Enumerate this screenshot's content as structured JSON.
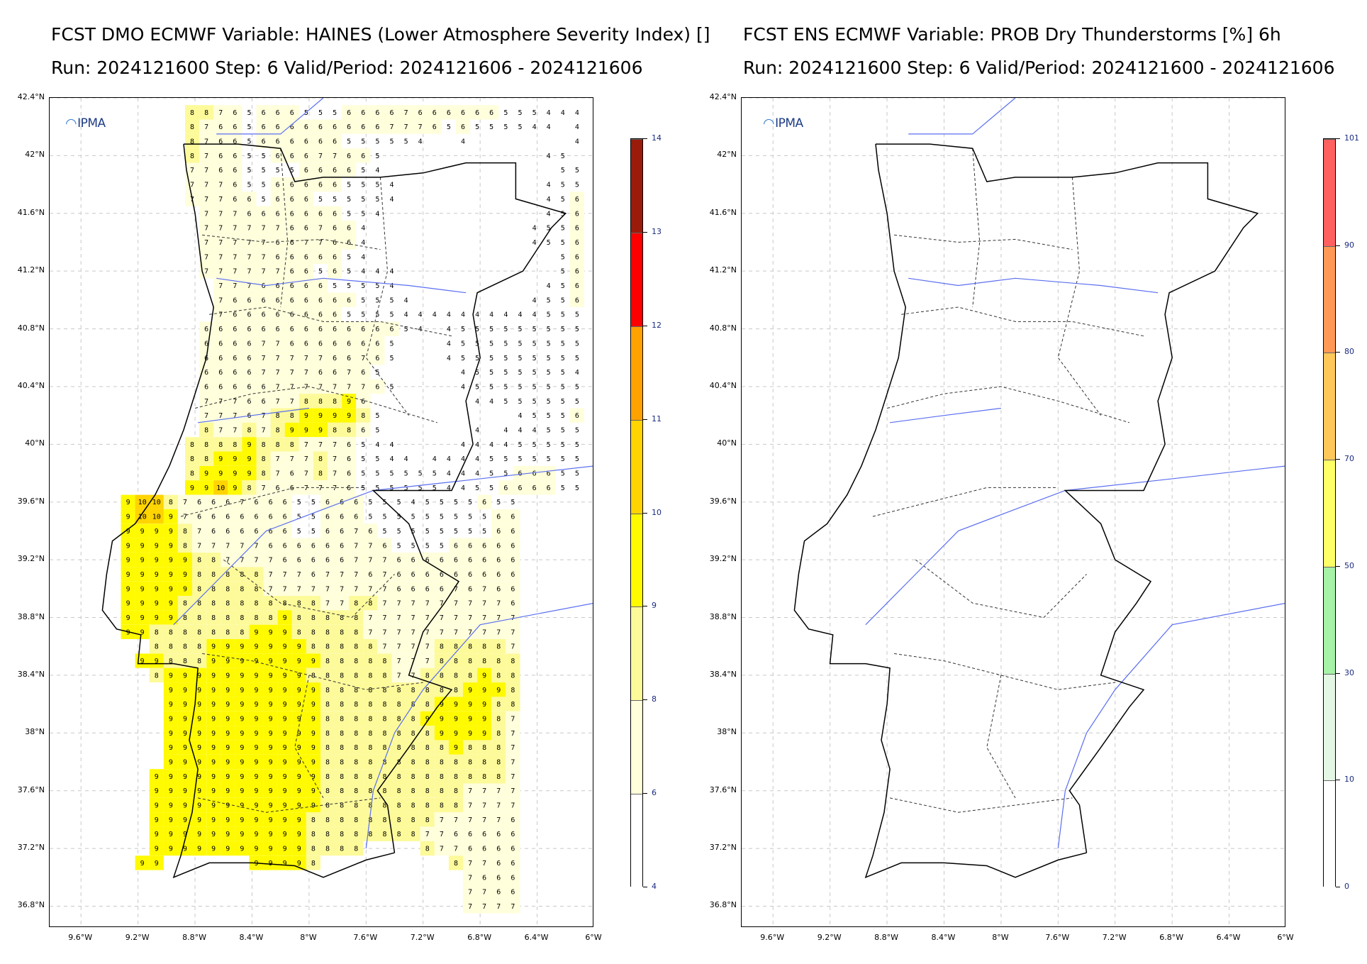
{
  "left_panel": {
    "title_line1": "FCST DMO ECMWF Variable: HAINES (Lower Atmosphere Severity Index) []",
    "title_line2": "Run: 2024121600 Step: 6 Valid/Period: 2024121606 - 2024121606",
    "logo_text": "IPMA",
    "colorbar": {
      "tick_labels": [
        "4",
        "6",
        "8",
        "9",
        "10",
        "11",
        "12",
        "13",
        "14"
      ],
      "colors": [
        "#ffffff",
        "#ffffdc",
        "#fdfa9a",
        "#fffa00",
        "#ffd400",
        "#ffa200",
        "#ff0000",
        "#9b1b0a"
      ]
    }
  },
  "right_panel": {
    "title_line1": "FCST ENS ECMWF Variable: PROB Dry Thunderstorms [%] 6h",
    "title_line2": "Run: 2024121600 Step: 6 Valid/Period: 2024121600 - 2024121606",
    "logo_text": "IPMA",
    "colorbar": {
      "tick_labels": [
        "0",
        "10",
        "30",
        "50",
        "70",
        "80",
        "90",
        "101"
      ],
      "colors": [
        "#ffffff",
        "#e4f6e4",
        "#a6f2a6",
        "#ffff66",
        "#ffc85a",
        "#ff9955",
        "#ff6060"
      ]
    }
  },
  "axes": {
    "lat_labels": [
      "42.4°N",
      "42°N",
      "41.6°N",
      "41.2°N",
      "40.8°N",
      "40.4°N",
      "40°N",
      "39.6°N",
      "39.2°N",
      "38.8°N",
      "38.4°N",
      "38°N",
      "37.6°N",
      "37.2°N",
      "36.8°N"
    ],
    "lon_labels": [
      "9.6°W",
      "9.2°W",
      "8.8°W",
      "8.4°W",
      "8°W",
      "7.6°W",
      "7.2°W",
      "6.8°W",
      "6.4°W",
      "6°W"
    ],
    "lat_range": [
      36.65,
      42.4
    ],
    "lon_range": [
      -9.82,
      -6.0
    ]
  },
  "map_features": {
    "grid_step_lon": 0.1,
    "grid_step_lat": 0.1,
    "land_outline_color": "#000000",
    "river_color": "#5a6ef0"
  },
  "haines_grid_rows": [
    {
      "lat": 42.3,
      "values": "8 8 7 6 5 6 6 6 5 5 5 6 6 6 6 7 6 6 6 6 6 6 5 5 5 4 4 4"
    },
    {
      "lat": 42.2,
      "values": "8 7 6 6 5 6 6 6 6 6 6 6 6 6 7 7 7 6 5 6 5 5 5 5 4 4 . 4"
    },
    {
      "lat": 42.1,
      "values": "8 7 6 6 5 6 6 6 6 6 6 5 5 5 5 5 4 . . 4 . . . . . . . 4"
    },
    {
      "lat": 42.0,
      "values": "8 7 6 6 5 5 6 6 6 7 7 6 6 5 . . . . . . . . . . . 4 5 ."
    },
    {
      "lat": 41.9,
      "values": "7 7 6 6 5 5 5 5 6 6 6 6 5 4 . . . . . . . . . . . . 5 5"
    },
    {
      "lat": 41.8,
      "values": "7 7 7 6 5 5 6 6 6 6 6 5 5 5 4 . . . . . . . . . . 4 5 5"
    },
    {
      "lat": 41.7,
      "values": "7 7 7 6 6 5 6 6 6 5 5 5 5 5 4 . . . . . . . . . . 4 5 6"
    },
    {
      "lat": 41.6,
      "values": ". 7 7 7 6 6 6 6 6 6 6 5 5 4 . . . . . . . . . . . 4 5 6"
    },
    {
      "lat": 41.5,
      "values": ". 7 7 7 7 7 7 6 6 7 6 6 4 . . . . . . . . . . . 4 5 5 6"
    },
    {
      "lat": 41.4,
      "values": ". 7 7 7 7 7 6 6 7 7 6 6 4 . . . . . . . . . . . 4 5 5 6"
    },
    {
      "lat": 41.3,
      "values": ". 7 7 7 7 7 6 6 6 6 6 5 4 . . . . . . . . . . . . . 5 6"
    },
    {
      "lat": 41.2,
      "values": ". 7 7 7 7 7 7 6 6 5 6 5 4 4 4 . . . . . . . . . . . 5 6"
    },
    {
      "lat": 41.1,
      "values": ". . 7 7 7 6 6 6 6 6 5 5 5 5 4 . . . . . . . . . . 4 5 6"
    },
    {
      "lat": 41.0,
      "values": ". . 7 6 6 6 6 6 6 6 6 6 5 5 5 4 . . . . . . . . 4 5 5 6"
    },
    {
      "lat": 40.9,
      "values": ". . 7 6 6 6 6 6 6 6 6 5 5 5 5 4 4 4 4 4 4 4 4 4 4 5 5 5"
    },
    {
      "lat": 40.8,
      "values": ". 6 6 6 6 6 6 6 6 6 6 6 6 6 6 5 4 . 4 5 5 5 5 5 5 5 5 5"
    },
    {
      "lat": 40.7,
      "values": ". 6 6 6 6 7 7 6 6 6 6 6 6 6 5 . . . 4 5 5 5 5 5 5 5 5 5"
    },
    {
      "lat": 40.6,
      "values": ". 6 6 6 6 7 7 7 7 7 6 6 7 6 5 . . . 4 5 5 5 5 5 5 5 5 5"
    },
    {
      "lat": 40.5,
      "values": ". 6 6 6 6 7 7 7 7 6 6 7 6 5 . . . . . 4 5 5 5 5 5 5 5 4"
    },
    {
      "lat": 40.4,
      "values": ". 6 6 6 6 6 7 7 7 7 7 7 7 6 5 . . . . 4 5 5 5 5 5 5 5 5"
    },
    {
      "lat": 40.3,
      "values": ". 7 7 7 6 6 7 7 8 8 8 9 6 . . . . . . . 4 4 5 5 5 5 5 5"
    },
    {
      "lat": 40.2,
      "values": ". 7 7 7 6 7 8 8 9 9 9 9 8 5 . . . . . . . . . 4 5 5 5 6"
    },
    {
      "lat": 40.1,
      "values": ". 8 7 7 8 7 8 9 9 9 8 8 6 5 . . . . . . 4 . 4 4 4 5 5 5"
    },
    {
      "lat": 40.0,
      "values": "8 8 8 8 9 8 8 8 7 7 7 6 5 4 4 . . . . 4 4 4 4 5 5 5 5 5"
    },
    {
      "lat": 39.9,
      "values": "8 8 9 9 9 8 7 7 7 8 7 6 5 5 4 4 . 4 4 4 4 5 5 5 5 5 5 5"
    },
    {
      "lat": 39.8,
      "values": "8 9 9 9 9 8 7 6 7 8 7 6 5 5 5 5 5 5 4 4 4 5 5 6 6 6 5 5"
    },
    {
      "lat": 39.7,
      "values": "9 9 10 9 8 7 6 6 7 7 7 6 5 5 5 5 5 5 4 4 5 5 6 6 6 6 5 5"
    },
    {
      "lat": 39.6,
      "values": "9 10 10 8 7 6 6 6 7 6 6 6 5 5 6 6 6 5 5 5 4 5 5 5 5 6 5 5"
    },
    {
      "lat": 39.5,
      "values": "9 10 10 9 7 6 6 6 6 6 6 6 5 5 6 6 6 5 5 5 5 5 5 5 5 5 6 6"
    },
    {
      "lat": 39.4,
      "values": "9 9 9 9 8 7 6 6 6 6 6 6 5 5 6 6 7 6 5 5 5 5 5 5 5 5 6 6"
    },
    {
      "lat": 39.3,
      "values": "9 9 9 9 8 7 7 7 7 7 6 6 6 6 6 6 7 7 6 5 5 5 5 6 6 6 6 6"
    },
    {
      "lat": 39.2,
      "values": "9 9 9 9 9 8 8 7 7 7 7 6 6 6 6 6 7 7 7 6 6 6 6 6 6 6 6 6"
    },
    {
      "lat": 39.1,
      "values": "9 9 9 9 9 8 8 8 8 8 7 7 7 6 7 7 7 6 7 6 6 6 6 6 6 6 6 6"
    },
    {
      "lat": 39.0,
      "values": "9 9 9 9 9 8 8 8 8 8 7 7 7 7 7 7 7 7 7 6 6 6 6 7 6 7 6 6"
    },
    {
      "lat": 38.9,
      "values": "9 9 9 9 8 8 8 8 8 8 8 8 8 8 7 7 8 8 7 7 7 7 7 7 7 7 7 6"
    },
    {
      "lat": 38.8,
      "values": "9 9 9 9 8 8 8 8 8 8 8 9 8 8 8 8 8 7 7 7 7 7 7 7 7 7 7 7"
    },
    {
      "lat": 38.7,
      "values": "9 9 8 8 8 8 8 8 8 9 9 9 8 8 8 8 8 7 7 7 7 7 7 7 7 7 7 7"
    },
    {
      "lat": 38.6,
      "values": ". . 8 8 8 8 9 9 9 9 9 9 9 8 8 8 8 8 7 7 7 7 8 8 8 8 8 7"
    },
    {
      "lat": 38.5,
      "values": ". 9 9 8 8 8 9 9 9 9 9 9 9 9 8 8 8 8 8 7 7 7 8 8 8 8 8 8"
    },
    {
      "lat": 38.4,
      "values": ". . 8 9 9 9 9 9 9 9 9 9 9 8 8 8 8 8 8 7 7 8 8 8 8 9 8 8"
    },
    {
      "lat": 38.3,
      "values": ". . . 9 9 9 9 9 9 9 9 9 9 9 8 8 8 8 8 8 8 8 8 8 9 9 9 8"
    },
    {
      "lat": 38.2,
      "values": ". . . 9 9 9 9 9 9 9 9 9 9 9 8 8 8 8 8 8 8 8 9 9 9 9 8 8"
    },
    {
      "lat": 38.1,
      "values": ". . . 9 9 9 9 9 9 9 9 9 9 9 8 8 8 8 8 8 8 9 9 9 9 9 8 7"
    },
    {
      "lat": 38.0,
      "values": ". . . 9 9 9 9 9 9 9 9 9 9 9 8 8 8 8 8 8 8 8 9 9 9 9 8 7"
    },
    {
      "lat": 37.9,
      "values": ". . . 9 9 9 9 9 9 9 9 9 9 9 8 8 8 8 8 8 8 8 8 9 8 8 8 7"
    },
    {
      "lat": 37.8,
      "values": ". . . 9 9 9 9 9 9 9 9 9 9 9 8 8 8 8 8 8 8 8 8 8 8 8 8 7"
    },
    {
      "lat": 37.7,
      "values": ". . 9 9 9 9 9 9 9 9 9 9 9 9 8 8 8 8 8 8 8 8 8 8 8 8 8 7"
    },
    {
      "lat": 37.6,
      "values": ". . 9 9 9 9 9 9 9 9 9 9 9 9 8 8 8 8 8 8 8 8 8 8 7 7 7 7"
    },
    {
      "lat": 37.5,
      "values": ". . 9 9 9 9 9 9 9 9 9 9 9 9 8 8 8 8 8 8 8 8 8 8 7 7 7 7"
    },
    {
      "lat": 37.4,
      "values": ". . 9 9 9 9 9 9 9 9 9 9 9 8 8 8 8 8 8 8 8 8 7 7 7 7 7 6"
    },
    {
      "lat": 37.3,
      "values": ". . 9 9 9 9 9 9 9 9 9 9 9 8 8 8 8 8 8 8 8 7 7 6 6 6 6 6"
    },
    {
      "lat": 37.2,
      "values": ". . 9 9 9 9 9 9 9 9 9 9 9 8 8 8 8 . . . . 8 7 7 6 6 6 6"
    },
    {
      "lat": 37.1,
      "values": ". 9 9 . . . . . . 9 9 9 9 8 . . . . . . . . . 8 7 7 6 6"
    },
    {
      "lat": 37.0,
      "values": ". . . . . . . . . . . . . . . . . . . . . . . . 7 6 6 6"
    },
    {
      "lat": 36.9,
      "values": ". . . . . . . . . . . . . . . . . . . . . . . . 7 7 6 6"
    },
    {
      "lat": 36.8,
      "values": ". . . . . . . . . . . . . . . . . . . . . . . . 7 7 7 7"
    }
  ]
}
